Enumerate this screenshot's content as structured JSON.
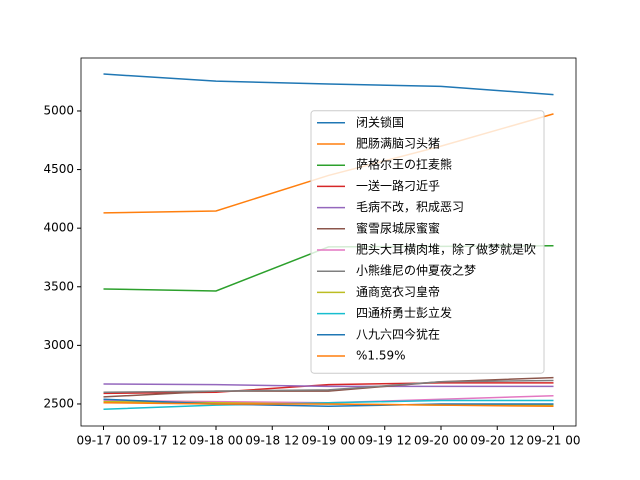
{
  "chart_data": {
    "type": "line",
    "x": [
      0,
      24,
      48,
      72,
      96
    ],
    "xlim": [
      -4.8,
      100.8
    ],
    "xticks": [
      {
        "value": 0,
        "label": "09-17 00"
      },
      {
        "value": 12,
        "label": "09-17 12"
      },
      {
        "value": 24,
        "label": "09-18 00"
      },
      {
        "value": 36,
        "label": "09-18 12"
      },
      {
        "value": 48,
        "label": "09-19 00"
      },
      {
        "value": 60,
        "label": "09-19 12"
      },
      {
        "value": 72,
        "label": "09-20 00"
      },
      {
        "value": 84,
        "label": "09-20 12"
      },
      {
        "value": 96,
        "label": "09-21 00"
      }
    ],
    "ylim": [
      2312,
      5452
    ],
    "yticks": [
      2500,
      3000,
      3500,
      4000,
      4500,
      5000
    ],
    "legend": "center right",
    "series": [
      {
        "name": "闭关锁国",
        "color": "#1f77b4",
        "values": [
          5315,
          5255,
          5230,
          5210,
          5140
        ]
      },
      {
        "name": "肥肠满脑习头猪",
        "color": "#ff7f0e",
        "values": [
          4130,
          4147,
          4450,
          4700,
          4975
        ]
      },
      {
        "name": "萨格尔王の扛麦熊",
        "color": "#2ca02c",
        "values": [
          3481,
          3464,
          3840,
          3845,
          3850
        ]
      },
      {
        "name": "一送一路刁近乎",
        "color": "#d62728",
        "values": [
          2590,
          2600,
          2665,
          2680,
          2680
        ]
      },
      {
        "name": "毛病不改，积成恶习",
        "color": "#9467bd",
        "values": [
          2670,
          2665,
          2650,
          2650,
          2650
        ]
      },
      {
        "name": "蜜雪尿城尿蜜蜜",
        "color": "#8c564b",
        "values": [
          2560,
          2610,
          2610,
          2690,
          2725
        ]
      },
      {
        "name": "肥头大耳横肉堆，除了做梦就是吹",
        "color": "#e377c2",
        "values": [
          2530,
          2520,
          2510,
          2540,
          2570
        ]
      },
      {
        "name": "小熊维尼の仲夏夜之梦",
        "color": "#7f7f7f",
        "values": [
          2600,
          2610,
          2620,
          2690,
          2700
        ]
      },
      {
        "name": "通商宽衣习皇帝",
        "color": "#bcbd22",
        "values": [
          2520,
          2510,
          2500,
          2490,
          2490
        ]
      },
      {
        "name": "四通桥勇士彭立发",
        "color": "#17becf",
        "values": [
          2455,
          2490,
          2510,
          2530,
          2530
        ]
      },
      {
        "name": "八九六四今犹在",
        "color": "#1f77b4",
        "values": [
          2540,
          2500,
          2480,
          2500,
          2500
        ]
      },
      {
        "name": "%1.59%",
        "color": "#ff7f0e",
        "values": [
          2510,
          2500,
          2500,
          2490,
          2480
        ]
      }
    ]
  }
}
